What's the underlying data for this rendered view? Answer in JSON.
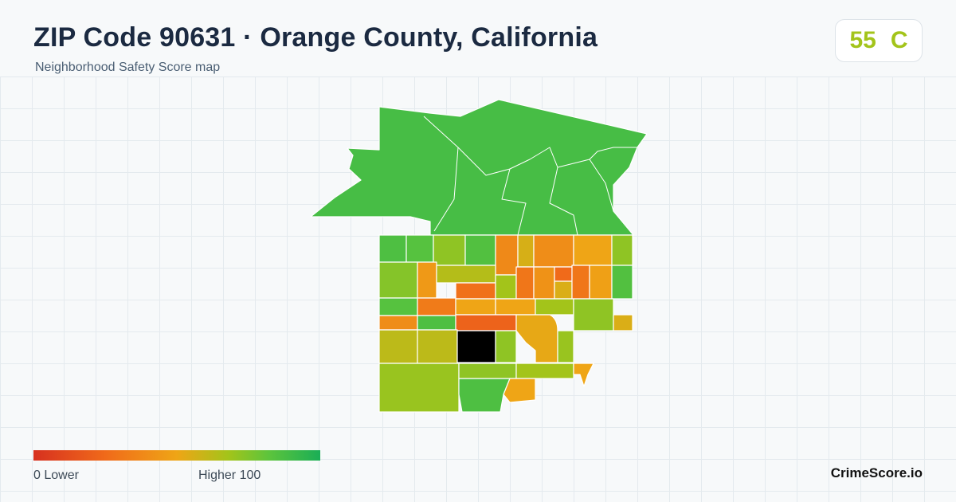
{
  "header": {
    "title": "ZIP Code 90631 · Orange County, California",
    "subtitle": "Neighborhood Safety Score map"
  },
  "score": {
    "value": "55",
    "grade": "C",
    "color": "#a3c41a"
  },
  "legend": {
    "low_label": "0  Lower",
    "high_label": "Higher  100",
    "min": 0,
    "max": 100,
    "colors": [
      "#d7301f",
      "#f06a1a",
      "#efa516",
      "#a3c41a",
      "#5dc43c",
      "#1aae56"
    ]
  },
  "brand": "CrimeScore.io",
  "map_regions": [
    {
      "id": "north-hills",
      "score": 88
    },
    {
      "id": "nw-block-1",
      "score": 86
    },
    {
      "id": "nw-block-2",
      "score": 84
    },
    {
      "id": "nw-block-3",
      "score": 72
    },
    {
      "id": "nw-block-4",
      "score": 85
    },
    {
      "id": "center-north-1",
      "score": 38
    },
    {
      "id": "center-north-2",
      "score": 56
    },
    {
      "id": "center-north-3",
      "score": 40
    },
    {
      "id": "ne-block-1",
      "score": 50
    },
    {
      "id": "ne-block-2",
      "score": 72
    },
    {
      "id": "w-block-1",
      "score": 74
    },
    {
      "id": "w-block-2",
      "score": 45
    },
    {
      "id": "w-block-3",
      "score": 64
    },
    {
      "id": "w-block-4",
      "score": 28
    },
    {
      "id": "center-1",
      "score": 68
    },
    {
      "id": "center-2",
      "score": 30
    },
    {
      "id": "center-3",
      "score": 42
    },
    {
      "id": "center-4",
      "score": 25
    },
    {
      "id": "center-5",
      "score": 55
    },
    {
      "id": "e-block-1",
      "score": 30
    },
    {
      "id": "e-block-2",
      "score": 48
    },
    {
      "id": "e-block-3",
      "score": 85
    },
    {
      "id": "sw-block-1",
      "score": 40
    },
    {
      "id": "sw-block-2",
      "score": 84
    },
    {
      "id": "sw-block-3",
      "score": 50
    },
    {
      "id": "s-center-1",
      "score": 32
    },
    {
      "id": "s-center-2",
      "score": 22
    },
    {
      "id": "s-center-3",
      "score": 62
    },
    {
      "id": "s-center-4",
      "score": 52
    },
    {
      "id": "se-block-1",
      "score": 68
    },
    {
      "id": "se-block-2",
      "score": 72
    },
    {
      "id": "se-block-3",
      "score": 50
    },
    {
      "id": "south-1",
      "score": 70
    },
    {
      "id": "south-2",
      "score": 72
    },
    {
      "id": "south-3",
      "score": 86
    },
    {
      "id": "south-4",
      "score": 62
    },
    {
      "id": "south-5",
      "score": 55
    }
  ]
}
